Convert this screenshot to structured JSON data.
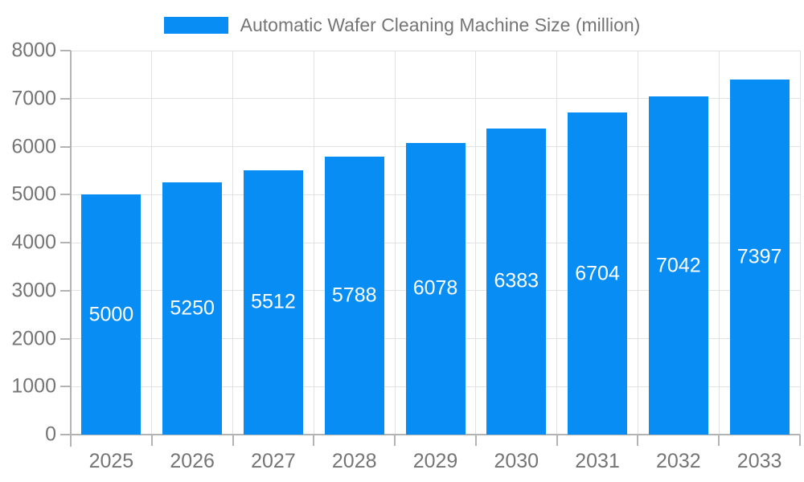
{
  "legend": {
    "label": "Automatic Wafer Cleaning Machine Size (million)"
  },
  "colors": {
    "bar": "#088DF5",
    "grid": "#e2e2e2",
    "axis": "#b3b3b3",
    "axis_text": "#757575",
    "bar_label_text": "#ffffff"
  },
  "chart_data": {
    "type": "bar",
    "title": "",
    "xlabel": "",
    "ylabel": "",
    "categories": [
      "2025",
      "2026",
      "2027",
      "2028",
      "2029",
      "2030",
      "2031",
      "2032",
      "2033"
    ],
    "series": [
      {
        "name": "Automatic Wafer Cleaning Machine Size (million)",
        "values": [
          5000,
          5250,
          5512,
          5788,
          6078,
          6383,
          6704,
          7042,
          7397
        ]
      }
    ],
    "value_labels_shown": true,
    "ylim": [
      0,
      8000
    ],
    "yticks": [
      0,
      1000,
      2000,
      3000,
      4000,
      5000,
      6000,
      7000,
      8000
    ],
    "grid": "on",
    "legend_position": "top-center"
  }
}
